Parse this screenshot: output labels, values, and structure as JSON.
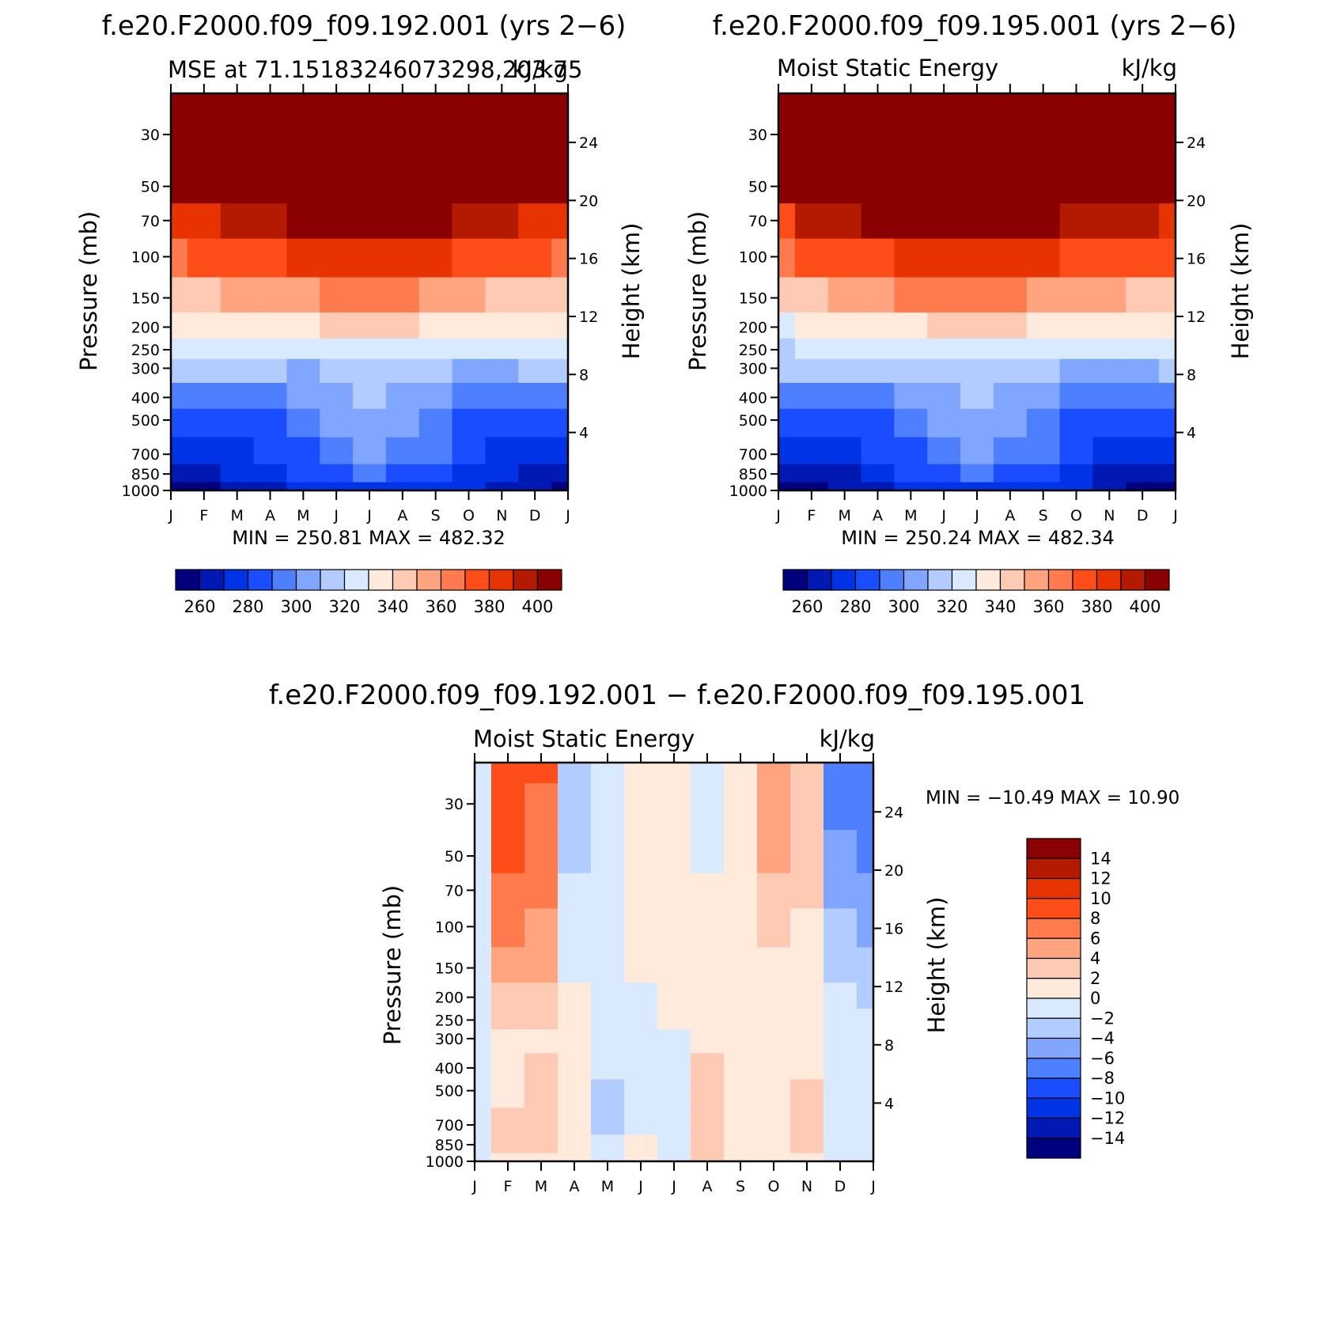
{
  "figure": {
    "panels": [
      {
        "title": "f.e20.F2000.f09_f09.192.001 (yrs 2−6)",
        "left_string": "MSE at 71.15183246073298,203.75",
        "right_string": "kJ/kg",
        "minmax": "MIN =  250.81  MAX =  482.32"
      },
      {
        "title": "f.e20.F2000.f09_f09.195.001 (yrs 2−6)",
        "left_string": "Moist Static Energy",
        "right_string": "kJ/kg",
        "minmax": "MIN =  250.24  MAX =  482.34"
      },
      {
        "title": "f.e20.F2000.f09_f09.192.001 − f.e20.F2000.f09_f09.195.001",
        "left_string": "Moist Static Energy",
        "right_string": "kJ/kg",
        "minmax": "MIN = −10.49  MAX =   10.90"
      }
    ],
    "ylabel_left": "Pressure (mb)",
    "ylabel_right": "Height (km)",
    "pressure_ticks": [
      "30",
      "50",
      "70",
      "100",
      "150",
      "200",
      "250",
      "300",
      "400",
      "500",
      "700",
      "850",
      "1000"
    ],
    "height_ticks": [
      "24",
      "20",
      "16",
      "12",
      "8",
      "4"
    ],
    "month_ticks": [
      "J",
      "F",
      "M",
      "A",
      "M",
      "J",
      "J",
      "A",
      "S",
      "O",
      "N",
      "D",
      "J"
    ]
  },
  "chart_data": [
    {
      "type": "heatmap",
      "title": "f.e20.F2000.f09_f09.192.001 (yrs 2−6)",
      "subtitle": "MSE at 71.15183246073298,203.75",
      "units": "kJ/kg",
      "xlabel": "",
      "ylabel": "Pressure (mb)",
      "ylabel_right": "Height (km)",
      "x": [
        "J",
        "F",
        "M",
        "A",
        "M",
        "J",
        "J",
        "A",
        "S",
        "O",
        "N",
        "D",
        "J"
      ],
      "y_pressure_mb": [
        20,
        30,
        50,
        70,
        100,
        150,
        200,
        250,
        300,
        400,
        500,
        700,
        850,
        1000
      ],
      "y_log_scale": true,
      "ylim_mb": [
        1000,
        20
      ],
      "min": 250.81,
      "max": 482.32,
      "levels": [
        260,
        270,
        280,
        290,
        300,
        310,
        320,
        330,
        340,
        350,
        360,
        370,
        380,
        390,
        400
      ],
      "colorbar_labels": [
        "260",
        "280",
        "300",
        "320",
        "340",
        "360",
        "380",
        "400"
      ],
      "z": [
        [
          480,
          480,
          480,
          480,
          480,
          480,
          480,
          480,
          480,
          480,
          480,
          480,
          480
        ],
        [
          470,
          470,
          470,
          470,
          470,
          470,
          470,
          470,
          470,
          470,
          470,
          470,
          470
        ],
        [
          405,
          420,
          440,
          450,
          460,
          468,
          470,
          468,
          455,
          445,
          432,
          418,
          405
        ],
        [
          384,
          388,
          394,
          398,
          404,
          408,
          410,
          408,
          402,
          396,
          392,
          388,
          384
        ],
        [
          368,
          371,
          374,
          378,
          381,
          384,
          386,
          384,
          380,
          377,
          374,
          371,
          368
        ],
        [
          345,
          348,
          350,
          354,
          359,
          363,
          365,
          362,
          357,
          352,
          349,
          347,
          345
        ],
        [
          330,
          331,
          332,
          334,
          338,
          341,
          343,
          341,
          336,
          332,
          331,
          330,
          330
        ],
        [
          322,
          322,
          322,
          320,
          324,
          327,
          329,
          328,
          324,
          321,
          320,
          321,
          322
        ],
        [
          316,
          316,
          316,
          313,
          309,
          313,
          314,
          314,
          310,
          306,
          306,
          310,
          316
        ],
        [
          297,
          297,
          296,
          294,
          300,
          308,
          310,
          307,
          302,
          295,
          294,
          295,
          297
        ],
        [
          287,
          287,
          287,
          287,
          296,
          305,
          309,
          306,
          298,
          288,
          287,
          287,
          287
        ],
        [
          276,
          276,
          277,
          281,
          289,
          297,
          302,
          298,
          290,
          282,
          279,
          277,
          276
        ],
        [
          267,
          267,
          270,
          274,
          280,
          288,
          290,
          288,
          283,
          275,
          270,
          268,
          267
        ],
        [
          255,
          256,
          261,
          266,
          270,
          271,
          272,
          272,
          272,
          270,
          264,
          260,
          255
        ]
      ]
    },
    {
      "type": "heatmap",
      "title": "f.e20.F2000.f09_f09.195.001 (yrs 2−6)",
      "subtitle": "Moist Static Energy",
      "units": "kJ/kg",
      "xlabel": "",
      "ylabel": "Pressure (mb)",
      "ylabel_right": "Height (km)",
      "x": [
        "J",
        "F",
        "M",
        "A",
        "M",
        "J",
        "J",
        "A",
        "S",
        "O",
        "N",
        "D",
        "J"
      ],
      "y_pressure_mb": [
        20,
        30,
        50,
        70,
        100,
        150,
        200,
        250,
        300,
        400,
        500,
        700,
        850,
        1000
      ],
      "y_log_scale": true,
      "ylim_mb": [
        1000,
        20
      ],
      "min": 250.24,
      "max": 482.34,
      "levels": [
        260,
        270,
        280,
        290,
        300,
        310,
        320,
        330,
        340,
        350,
        360,
        370,
        380,
        390,
        400
      ],
      "colorbar_labels": [
        "260",
        "280",
        "300",
        "320",
        "340",
        "360",
        "380",
        "400"
      ],
      "z": [
        [
          480,
          480,
          480,
          480,
          480,
          480,
          480,
          480,
          480,
          480,
          480,
          480,
          480
        ],
        [
          470,
          470,
          470,
          470,
          470,
          470,
          470,
          470,
          470,
          470,
          470,
          470,
          470
        ],
        [
          400,
          410,
          430,
          450,
          460,
          468,
          470,
          468,
          455,
          445,
          435,
          425,
          410
        ],
        [
          378,
          390,
          396,
          402,
          406,
          408,
          410,
          408,
          403,
          397,
          393,
          391,
          386
        ],
        [
          361,
          370,
          374,
          379,
          382,
          384,
          386,
          384,
          381,
          377,
          374,
          372,
          370
        ],
        [
          342,
          349,
          352,
          357,
          360,
          363,
          365,
          362,
          359,
          354,
          350,
          348,
          347
        ],
        [
          328,
          332,
          333,
          336,
          339,
          341,
          343,
          341,
          337,
          333,
          332,
          331,
          331
        ],
        [
          318,
          321,
          322,
          322,
          325,
          327,
          329,
          328,
          325,
          322,
          320,
          320,
          320
        ],
        [
          312,
          312,
          313,
          314,
          312,
          316,
          318,
          316,
          311,
          307,
          306,
          308,
          312
        ],
        [
          293,
          296,
          296,
          295,
          301,
          309,
          311,
          308,
          302,
          296,
          294,
          294,
          293
        ],
        [
          283,
          286,
          286,
          286,
          296,
          305,
          309,
          306,
          298,
          287,
          285,
          285,
          283
        ],
        [
          273,
          275,
          277,
          281,
          289,
          297,
          302,
          298,
          290,
          282,
          277,
          275,
          273
        ],
        [
          263,
          266,
          269,
          273,
          280,
          288,
          290,
          288,
          283,
          275,
          269,
          266,
          264
        ],
        [
          251,
          255,
          260,
          265,
          270,
          271,
          272,
          272,
          272,
          270,
          263,
          258,
          252
        ]
      ]
    },
    {
      "type": "heatmap",
      "title": "f.e20.F2000.f09_f09.192.001 − f.e20.F2000.f09_f09.195.001",
      "subtitle": "Moist Static Energy",
      "units": "kJ/kg",
      "xlabel": "",
      "ylabel": "Pressure (mb)",
      "ylabel_right": "Height (km)",
      "x": [
        "J",
        "F",
        "M",
        "A",
        "M",
        "J",
        "J",
        "A",
        "S",
        "O",
        "N",
        "D",
        "J"
      ],
      "y_pressure_mb": [
        20,
        30,
        50,
        70,
        100,
        150,
        200,
        250,
        300,
        400,
        500,
        700,
        850,
        1000
      ],
      "y_log_scale": true,
      "ylim_mb": [
        1000,
        20
      ],
      "min": -10.49,
      "max": 10.9,
      "levels": [
        -14,
        -12,
        -10,
        -8,
        -6,
        -4,
        -2,
        0,
        2,
        4,
        6,
        8,
        10,
        12,
        14
      ],
      "colorbar_labels": [
        "14",
        "12",
        "10",
        "8",
        "6",
        "4",
        "2",
        "0",
        "−2",
        "−4",
        "−6",
        "−8",
        "−10",
        "−12",
        "−14"
      ],
      "z": [
        [
          -2,
          9,
          9,
          -3,
          -1,
          1,
          1,
          -1,
          1,
          5,
          2,
          -7,
          -8
        ],
        [
          -2,
          9,
          7,
          -3,
          -1,
          1,
          1,
          -1,
          1,
          5,
          2,
          -7,
          -8
        ],
        [
          -2,
          8,
          6,
          -3,
          -1,
          1,
          1,
          -1,
          1,
          4,
          2,
          -6,
          -7
        ],
        [
          -2,
          6,
          6,
          -2,
          -1,
          1,
          1,
          1,
          1,
          3,
          2,
          -5,
          -6
        ],
        [
          -2,
          6,
          5,
          -1,
          -1,
          1,
          1,
          1,
          1,
          3,
          1,
          -4,
          -5
        ],
        [
          -2,
          4,
          4,
          -1,
          -1,
          1,
          1,
          1,
          1,
          1,
          1,
          -3,
          -4
        ],
        [
          -1,
          3,
          2,
          1,
          -1,
          -1,
          1,
          1,
          1,
          1,
          1,
          -2,
          -3
        ],
        [
          -1,
          3,
          2,
          1,
          -1,
          -1,
          1,
          1,
          1,
          1,
          1,
          -2,
          -2
        ],
        [
          -1,
          1,
          1,
          1,
          -1,
          -1,
          -1,
          1,
          1,
          1,
          1,
          -2,
          -2
        ],
        [
          -1,
          1,
          3,
          1,
          -1,
          -1,
          -1,
          3,
          1,
          1,
          1,
          -1,
          -1
        ],
        [
          -1,
          1,
          3,
          1,
          -3,
          -1,
          -1,
          3,
          1,
          1,
          3,
          -1,
          -1
        ],
        [
          -1,
          3,
          3,
          1,
          -3,
          -1,
          -1,
          3,
          1,
          1,
          3,
          -1,
          -1
        ],
        [
          -2,
          2,
          2,
          1,
          -2,
          1,
          -1,
          3,
          1,
          1,
          3,
          -2,
          -2
        ],
        [
          -2,
          1,
          1,
          1,
          -2,
          1,
          -1,
          2,
          1,
          1,
          1,
          -2,
          -2
        ]
      ]
    }
  ],
  "colors": {
    "full_field": [
      "#00007f",
      "#0019b3",
      "#0033e6",
      "#1a4dff",
      "#4d7fff",
      "#80a6ff",
      "#b3ccff",
      "#d9eaff",
      "#ffeadb",
      "#ffcab3",
      "#ffa47f",
      "#ff7a4d",
      "#ff4d1a",
      "#e63300",
      "#b31a00",
      "#8b0000"
    ],
    "difference": [
      "#00007f",
      "#0019b3",
      "#0033e6",
      "#1a4dff",
      "#4d7fff",
      "#80a6ff",
      "#b3ccff",
      "#d9eaff",
      "#ffeadb",
      "#ffcab3",
      "#ffa47f",
      "#ff7a4d",
      "#ff4d1a",
      "#e63300",
      "#b31a00",
      "#8b0000"
    ]
  }
}
